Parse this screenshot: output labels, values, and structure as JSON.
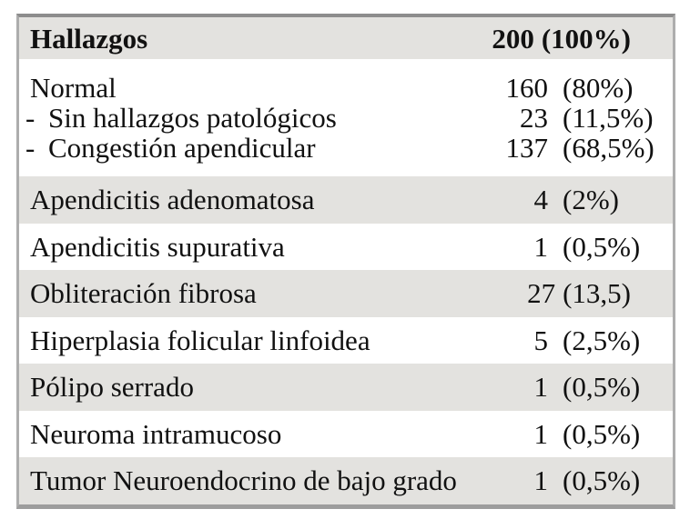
{
  "table": {
    "header": {
      "label": "Hallazgos",
      "count": "200",
      "percent": "(100%)"
    },
    "normal_block": {
      "lines": [
        {
          "label": "Normal",
          "count": "160",
          "percent": "(80%)"
        },
        {
          "bullet": "-",
          "label": "Sin hallazgos patológicos",
          "count": "23",
          "percent": "(11,5%)"
        },
        {
          "bullet": "-",
          "label": "Congestión apendicular",
          "count": "137",
          "percent": "(68,5%)"
        }
      ]
    },
    "rows": [
      {
        "label": "Apendicitis adenomatosa",
        "count": "4",
        "percent": "(2%)"
      },
      {
        "label": "Apendicitis supurativa",
        "count": "1",
        "percent": "(0,5%)"
      },
      {
        "label": "Obliteración fibrosa",
        "count": "27",
        "percent": "(13,5)"
      },
      {
        "label": "Hiperplasia folicular linfoidea",
        "count": "5",
        "percent": "(2,5%)"
      },
      {
        "label": "Pólipo serrado",
        "count": "1",
        "percent": "(0,5%)"
      },
      {
        "label": "Neuroma intramucoso",
        "count": "1",
        "percent": "(0,5%)"
      },
      {
        "label": "Tumor Neuroendocrino de bajo grado",
        "count": "1",
        "percent": "(0,5%)"
      }
    ],
    "colors": {
      "row_shade": "#e3e2df",
      "border_top": "#8d8d8d",
      "border_bottom": "#9d9d9d",
      "border_side": "#adadad",
      "text": "#111111"
    }
  }
}
